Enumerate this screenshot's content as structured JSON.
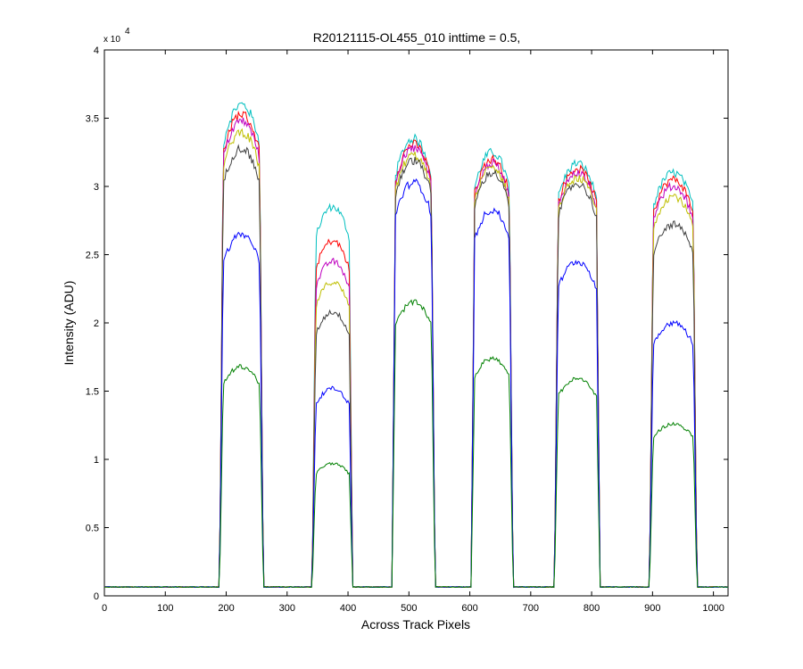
{
  "chart_data": {
    "type": "line",
    "title": "R20121115-OL455_010 inttime = 0.5,",
    "xlabel": "Across Track Pixels",
    "ylabel": "Intensity (ADU)",
    "y_exponent_label": "x 10",
    "y_exponent_power": "4",
    "xlim": [
      0,
      1024
    ],
    "ylim": [
      0,
      40000
    ],
    "xticks": [
      0,
      100,
      200,
      300,
      400,
      500,
      600,
      700,
      800,
      900,
      1000
    ],
    "yticks": [
      0,
      5000,
      10000,
      15000,
      20000,
      25000,
      30000,
      35000,
      40000
    ],
    "ytick_labels": [
      "0",
      "0.5",
      "1",
      "1.5",
      "2",
      "2.5",
      "3",
      "3.5",
      "4"
    ],
    "grid": false,
    "baseline": 650,
    "bands": [
      {
        "start": 195,
        "end": 255
      },
      {
        "start": 347,
        "end": 402
      },
      {
        "start": 478,
        "end": 537
      },
      {
        "start": 608,
        "end": 665
      },
      {
        "start": 745,
        "end": 808
      },
      {
        "start": 901,
        "end": 967
      }
    ],
    "series": [
      {
        "color": "#00BFBF",
        "plateaus": [
          36000,
          28500,
          33500,
          32500,
          31700,
          31000
        ]
      },
      {
        "color": "#FF0000",
        "plateaus": [
          35300,
          26000,
          33100,
          32000,
          31300,
          30500
        ]
      },
      {
        "color": "#BF00BF",
        "plateaus": [
          34800,
          24500,
          32800,
          31700,
          31000,
          30000
        ]
      },
      {
        "color": "#BFBF00",
        "plateaus": [
          34000,
          23000,
          32300,
          31400,
          30600,
          29300
        ]
      },
      {
        "color": "#404040",
        "plateaus": [
          32800,
          20800,
          31900,
          31000,
          30200,
          27200
        ]
      },
      {
        "color": "#0000FF",
        "plateaus": [
          26500,
          15200,
          30300,
          28300,
          24500,
          20000
        ]
      },
      {
        "color": "#008000",
        "plateaus": [
          16800,
          9700,
          21500,
          17400,
          15900,
          12600
        ]
      }
    ]
  }
}
